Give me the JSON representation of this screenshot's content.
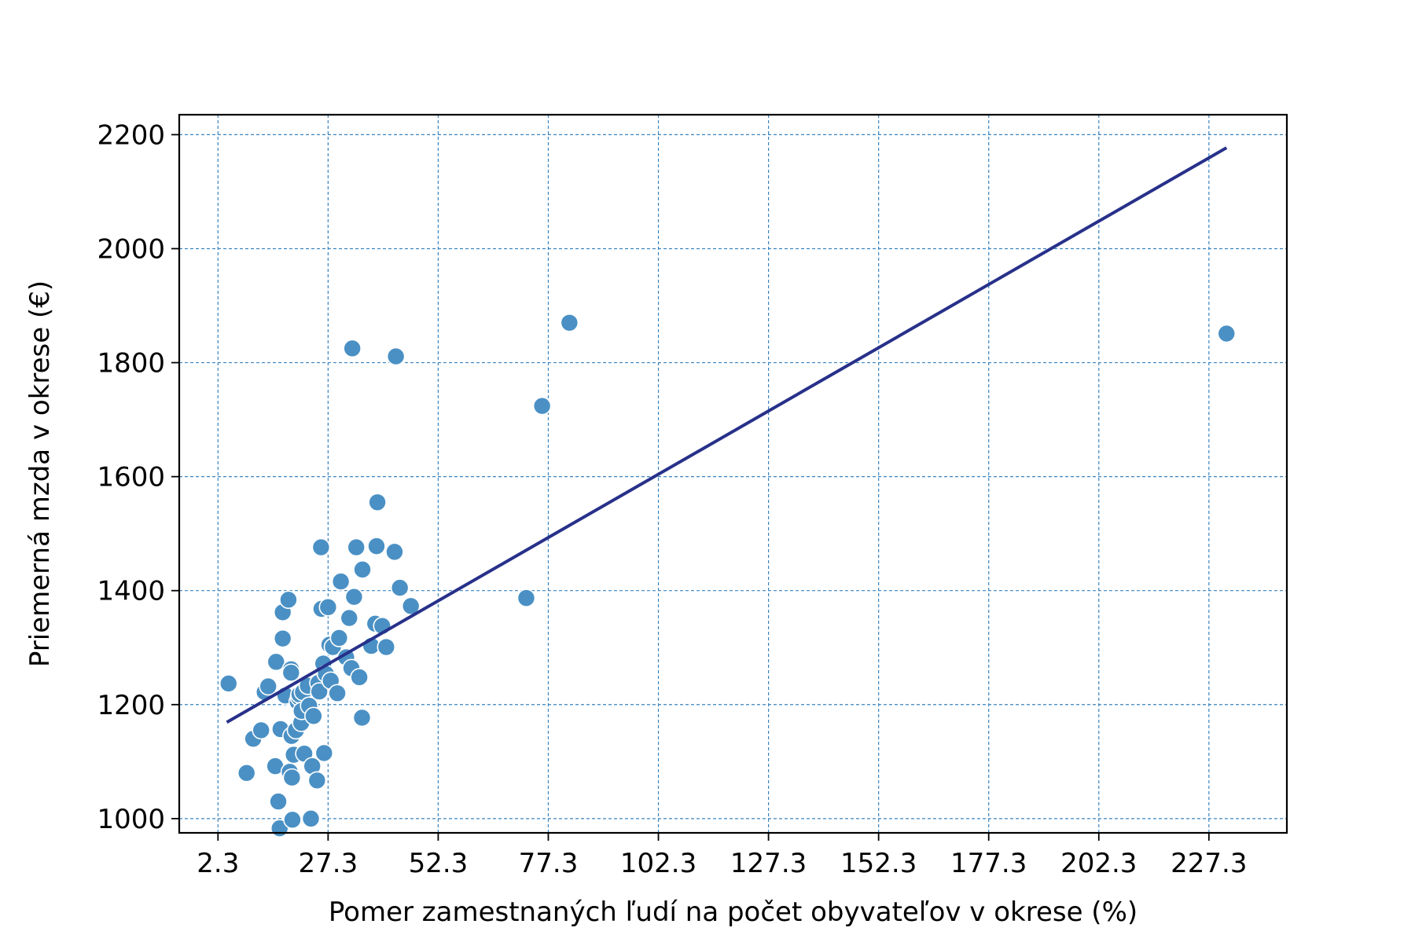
{
  "chart_data": {
    "type": "scatter",
    "title": "",
    "xlabel": "Pomer zamestnaných ľudí na počet obyvateľov v okrese (%)",
    "ylabel": "Priemerná mzda v okrese (€)",
    "xlim": [
      -6.5,
      245
    ],
    "ylim": [
      975,
      2235
    ],
    "xticks": [
      2.3,
      27.3,
      52.3,
      77.3,
      102.3,
      127.3,
      152.3,
      177.3,
      202.3,
      227.3
    ],
    "xtick_labels": [
      "2.3",
      "27.3",
      "52.3",
      "77.3",
      "102.3",
      "127.3",
      "152.3",
      "177.3",
      "202.3",
      "227.3"
    ],
    "yticks": [
      1000,
      1200,
      1400,
      1600,
      1800,
      2000,
      2200
    ],
    "ytick_labels": [
      "1000",
      "1200",
      "1400",
      "1600",
      "1800",
      "2000",
      "2200"
    ],
    "grid": true,
    "colors": {
      "points": "#4a90c4",
      "regression": "#27318a",
      "grid": "#3a84bf",
      "frame": "#000000"
    },
    "series": [
      {
        "type": "scatter",
        "points": [
          [
            4.7,
            1237
          ],
          [
            8.8,
            1080
          ],
          [
            10.3,
            1140
          ],
          [
            12.1,
            1155
          ],
          [
            12.9,
            1222
          ],
          [
            13.7,
            1232
          ],
          [
            15.3,
            1092
          ],
          [
            15.5,
            1275
          ],
          [
            16.0,
            1030
          ],
          [
            16.3,
            983
          ],
          [
            16.5,
            1157
          ],
          [
            17.0,
            1362
          ],
          [
            17.0,
            1316
          ],
          [
            17.6,
            1216
          ],
          [
            18.3,
            1384
          ],
          [
            18.6,
            1082
          ],
          [
            18.9,
            1262
          ],
          [
            18.9,
            1256
          ],
          [
            19.0,
            1145
          ],
          [
            19.1,
            1072
          ],
          [
            19.2,
            998
          ],
          [
            19.5,
            1112
          ],
          [
            20.0,
            1155
          ],
          [
            20.4,
            1205
          ],
          [
            20.7,
            1213
          ],
          [
            20.8,
            1218
          ],
          [
            21.2,
            1168
          ],
          [
            21.3,
            1189
          ],
          [
            21.6,
            1222
          ],
          [
            21.9,
            1114
          ],
          [
            22.7,
            1233
          ],
          [
            23.0,
            1198
          ],
          [
            23.4,
            1000
          ],
          [
            23.7,
            1092
          ],
          [
            24.0,
            1180
          ],
          [
            24.8,
            1067
          ],
          [
            25.1,
            1238
          ],
          [
            25.3,
            1223
          ],
          [
            25.7,
            1476
          ],
          [
            25.8,
            1368
          ],
          [
            26.2,
            1272
          ],
          [
            26.4,
            1115
          ],
          [
            26.8,
            1254
          ],
          [
            27.3,
            1371
          ],
          [
            27.6,
            1305
          ],
          [
            27.9,
            1242
          ],
          [
            28.4,
            1301
          ],
          [
            29.4,
            1220
          ],
          [
            29.8,
            1317
          ],
          [
            30.2,
            1416
          ],
          [
            31.4,
            1283
          ],
          [
            32.1,
            1352
          ],
          [
            32.6,
            1264
          ],
          [
            32.8,
            1825
          ],
          [
            33.2,
            1389
          ],
          [
            33.7,
            1476
          ],
          [
            34.4,
            1248
          ],
          [
            35.0,
            1177
          ],
          [
            35.1,
            1437
          ],
          [
            37.1,
            1303
          ],
          [
            38.0,
            1342
          ],
          [
            38.3,
            1478
          ],
          [
            38.5,
            1555
          ],
          [
            39.6,
            1338
          ],
          [
            40.5,
            1301
          ],
          [
            42.4,
            1468
          ],
          [
            42.7,
            1811
          ],
          [
            43.6,
            1405
          ],
          [
            46.1,
            1373
          ],
          [
            72.3,
            1387
          ],
          [
            75.9,
            1724
          ],
          [
            82.1,
            1870
          ],
          [
            231.3,
            1851
          ]
        ]
      },
      {
        "type": "line",
        "points": [
          [
            4.3,
            1169
          ],
          [
            231.3,
            2177
          ]
        ]
      }
    ]
  }
}
